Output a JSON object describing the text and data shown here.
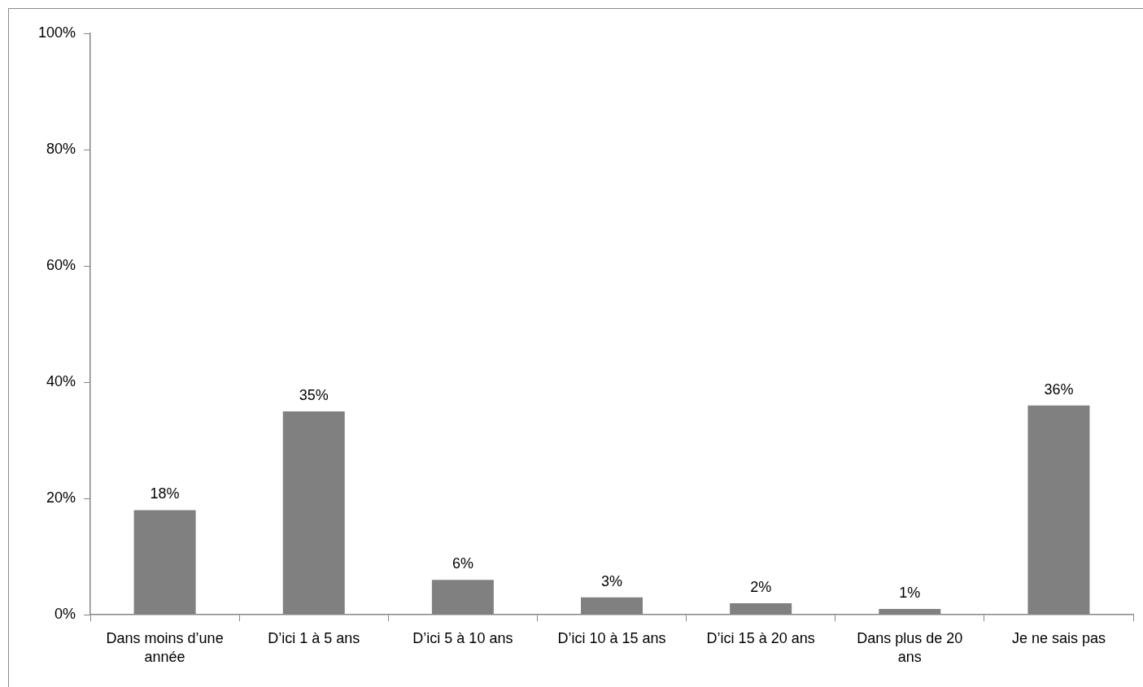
{
  "chart_data": {
    "type": "bar",
    "categories": [
      "Dans moins d’une année",
      "D’ici 1 à 5 ans",
      "D’ici 5 à 10 ans",
      "D’ici 10 à 15 ans",
      "D’ici 15 à 20 ans",
      "Dans plus de 20 ans",
      "Je ne sais pas"
    ],
    "values": [
      18,
      35,
      6,
      3,
      2,
      1,
      36
    ],
    "value_labels": [
      "18%",
      "35%",
      "6%",
      "3%",
      "2%",
      "1%",
      "36%"
    ],
    "color": "#808080",
    "ylim": [
      0,
      100
    ],
    "yticks": [
      {
        "value": 0,
        "label": "0%"
      },
      {
        "value": 20,
        "label": "20%"
      },
      {
        "value": 40,
        "label": "40%"
      },
      {
        "value": 60,
        "label": "60%"
      },
      {
        "value": 80,
        "label": "80%"
      },
      {
        "value": 100,
        "label": "100%"
      }
    ]
  }
}
